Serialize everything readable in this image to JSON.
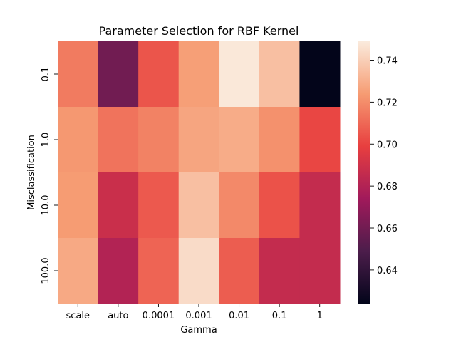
{
  "chart_data": {
    "type": "heatmap",
    "title": "Parameter Selection for RBF Kernel",
    "xlabel": "Gamma",
    "ylabel": "Misclassification",
    "x_categories": [
      "scale",
      "auto",
      "0.0001",
      "0.001",
      "0.01",
      "0.1",
      "1"
    ],
    "y_categories": [
      "0.1",
      "1.0",
      "10.0",
      "100.0"
    ],
    "values": [
      [
        0.715,
        0.66,
        0.705,
        0.725,
        0.748,
        0.735,
        0.624
      ],
      [
        0.723,
        0.713,
        0.717,
        0.727,
        0.729,
        0.721,
        0.701
      ],
      [
        0.724,
        0.688,
        0.706,
        0.735,
        0.719,
        0.704,
        0.686
      ],
      [
        0.728,
        0.68,
        0.709,
        0.744,
        0.707,
        0.686,
        0.686
      ]
    ],
    "colorbar": {
      "min": 0.624,
      "max": 0.749,
      "ticks": [
        "0.64",
        "0.66",
        "0.68",
        "0.70",
        "0.72",
        "0.74"
      ],
      "tick_values": [
        0.64,
        0.66,
        0.68,
        0.7,
        0.72,
        0.74
      ],
      "colormap": "rocket",
      "colormap_stops": [
        "#03051a",
        "#4c1d4b",
        "#a11a5b",
        "#e83f3f",
        "#f69c73",
        "#faebdd"
      ]
    }
  }
}
